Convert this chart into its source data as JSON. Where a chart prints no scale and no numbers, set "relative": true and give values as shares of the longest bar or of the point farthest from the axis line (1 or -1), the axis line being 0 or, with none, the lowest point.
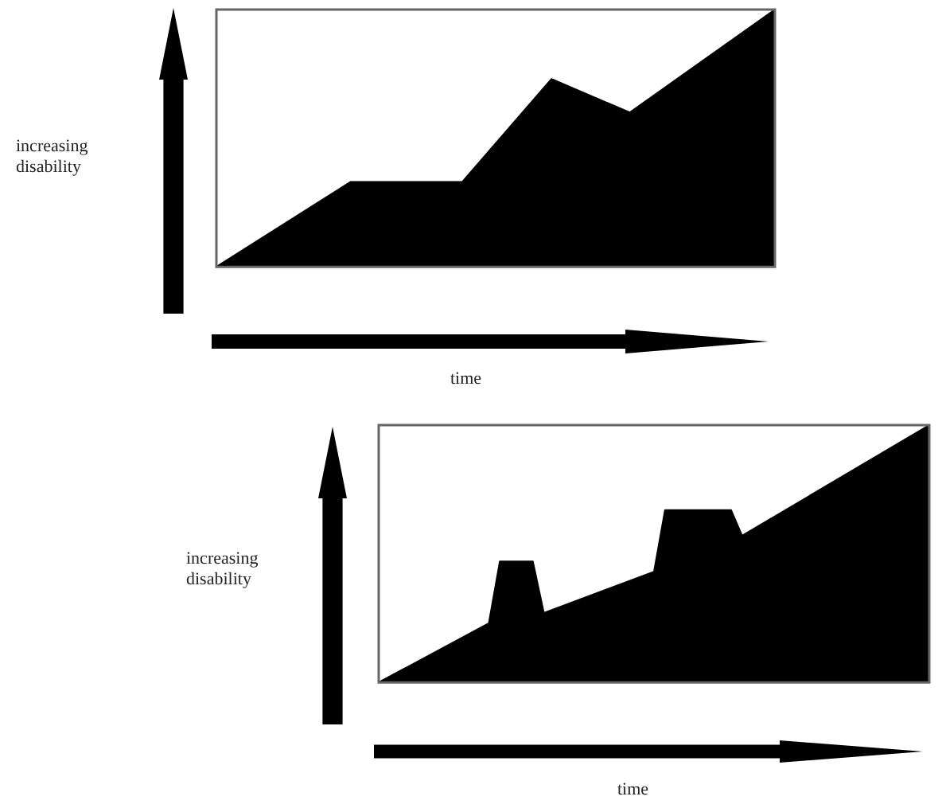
{
  "chart_data": [
    {
      "type": "area",
      "relative": true,
      "xlabel": "time",
      "ylabel": "increasing disability",
      "categories": [
        null,
        null,
        null,
        null,
        null,
        null,
        null,
        null,
        null,
        null,
        null,
        null,
        null,
        null,
        null,
        null,
        null,
        null,
        null,
        null,
        null,
        null,
        null,
        null,
        null,
        null,
        null,
        null,
        null,
        null,
        null,
        null,
        null,
        null,
        null,
        null,
        null,
        null,
        null,
        null,
        null,
        null,
        null,
        null,
        null,
        null,
        null,
        null,
        null,
        null,
        null
      ],
      "series": [
        {
          "color": "#000000",
          "values": [
            0,
            null,
            null,
            null,
            null,
            null,
            null,
            null,
            null,
            null,
            null,
            null,
            0.33,
            null,
            null,
            null,
            null,
            null,
            null,
            null,
            null,
            null,
            0.33,
            null,
            null,
            null,
            null,
            null,
            null,
            null,
            0.73,
            null,
            null,
            null,
            null,
            null,
            null,
            0.6,
            null,
            null,
            null,
            null,
            null,
            null,
            null,
            null,
            null,
            null,
            null,
            null,
            1
          ]
        }
      ]
    },
    {
      "type": "area",
      "relative": true,
      "xlabel": "time",
      "ylabel": "increasing disability",
      "categories": [
        null,
        null,
        null,
        null,
        null,
        null,
        null,
        null,
        null,
        null,
        null,
        null,
        null,
        null,
        null,
        null,
        null,
        null,
        null,
        null,
        null,
        null,
        null,
        null,
        null,
        null,
        null,
        null,
        null,
        null,
        null,
        null,
        null,
        null,
        null,
        null,
        null,
        null,
        null,
        null,
        null,
        null,
        null,
        null,
        null,
        null,
        null,
        null,
        null,
        null,
        null
      ],
      "series": [
        {
          "color": "#000000",
          "values": [
            0,
            null,
            null,
            null,
            null,
            null,
            null,
            null,
            null,
            null,
            0.23,
            0.47,
            null,
            null,
            0.47,
            0.27,
            null,
            null,
            null,
            null,
            null,
            null,
            null,
            null,
            null,
            0.43,
            0.67,
            null,
            null,
            null,
            null,
            null,
            0.67,
            0.57,
            null,
            null,
            null,
            null,
            null,
            null,
            null,
            null,
            null,
            null,
            null,
            null,
            null,
            null,
            null,
            null,
            1
          ]
        }
      ]
    }
  ]
}
